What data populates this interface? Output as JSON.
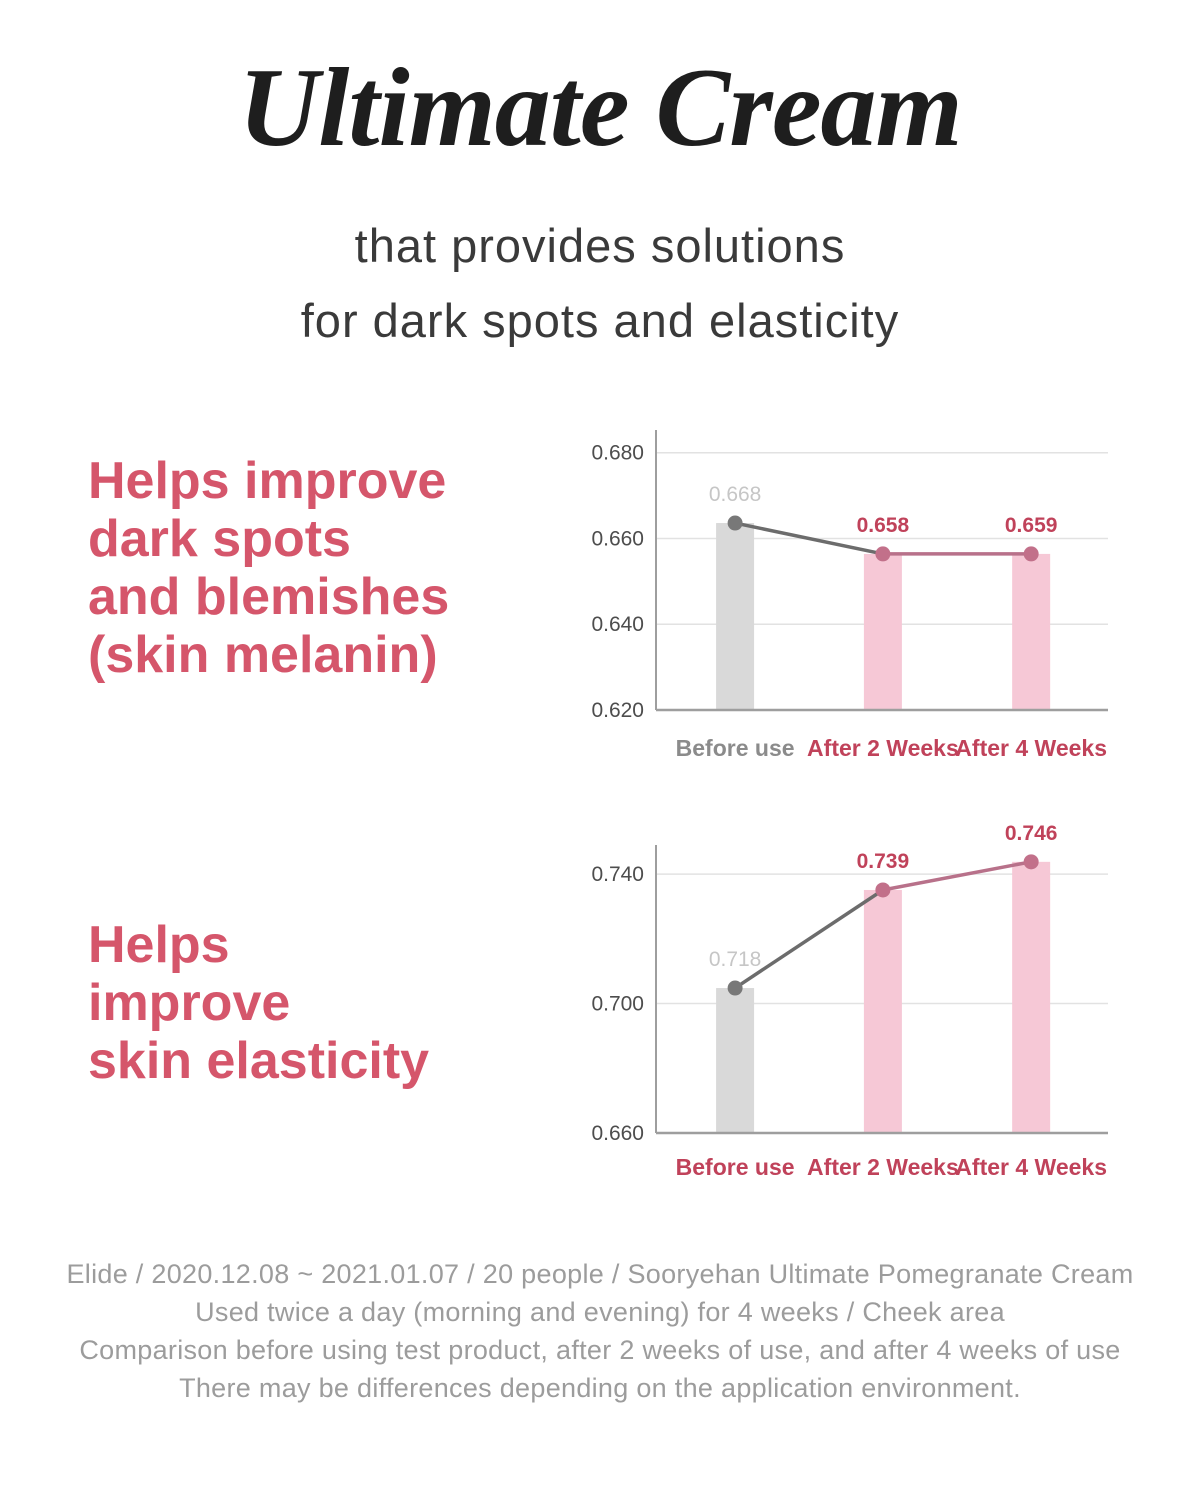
{
  "title": "Ultimate Cream",
  "subtitle": {
    "lines": [
      "that provides solutions",
      "for dark spots and elasticity"
    ]
  },
  "sections": [
    {
      "heading_lines": [
        "Helps improve",
        "dark spots",
        "and blemishes",
        "(skin melanin)"
      ]
    },
    {
      "heading_lines": [
        "Helps",
        "improve",
        "skin elasticity"
      ]
    }
  ],
  "colors": {
    "title_black": "#1e1e1e",
    "subtitle_dark": "#3a3a3a",
    "heading_red": "#d5566b",
    "accent_red": "#c0425a",
    "bar_gray": "#d9d9d9",
    "bar_pink": "#f6c8d6",
    "dot_gray": "#787878",
    "dot_pink": "#c2708a",
    "line_gray": "#6c6c6c",
    "line_pink": "#b8718a",
    "label_gray": "#c6c6c6",
    "tick_gray": "#4d4d4d",
    "category_gray": "#8b8b8b",
    "grid": "#e2e2e2",
    "axis": "#9e9e9e",
    "footer_gray": "#9c9c9c"
  },
  "chart_data": [
    {
      "type": "bar",
      "name": "skin-melanin",
      "categories": [
        "Before use",
        "After 2 Weeks",
        "After 4 Weeks"
      ],
      "category_colors": [
        "gray",
        "red",
        "red"
      ],
      "values": [
        0.668,
        0.658,
        0.659
      ],
      "value_label_colors": [
        "gray",
        "red",
        "red"
      ],
      "bar_colors": [
        "gray",
        "pink",
        "pink"
      ],
      "rendered_bar_values": [
        0.6636,
        0.6564,
        0.6564
      ],
      "yticks": [
        0.68,
        0.66,
        0.64,
        0.62
      ],
      "ylim": [
        0.62,
        0.6853
      ],
      "grid": true,
      "line_overlay": true,
      "title": "",
      "xlabel": "",
      "ylabel": ""
    },
    {
      "type": "bar",
      "name": "skin-elasticity",
      "categories": [
        "Before use",
        "After 2 Weeks",
        "After 4 Weeks"
      ],
      "category_colors": [
        "red",
        "red",
        "red"
      ],
      "values": [
        0.718,
        0.739,
        0.746
      ],
      "value_label_colors": [
        "gray",
        "red",
        "red"
      ],
      "bar_colors": [
        "gray",
        "pink",
        "pink"
      ],
      "rendered_bar_values": [
        0.7048,
        0.7351,
        0.7438
      ],
      "yticks": [
        0.74,
        0.7,
        0.66
      ],
      "ylim": [
        0.66,
        0.749
      ],
      "grid": true,
      "line_overlay": true,
      "title": "",
      "xlabel": "",
      "ylabel": ""
    }
  ],
  "footer": {
    "lines": [
      "Elide / 2020.12.08 ~ 2021.01.07 / 20 people / Sooryehan Ultimate Pomegranate Cream",
      "Used twice a day (morning and evening) for 4 weeks / Cheek area",
      "Comparison before using test product, after 2 weeks of use, and after 4 weeks of use",
      "There may be differences depending on the application environment."
    ]
  }
}
